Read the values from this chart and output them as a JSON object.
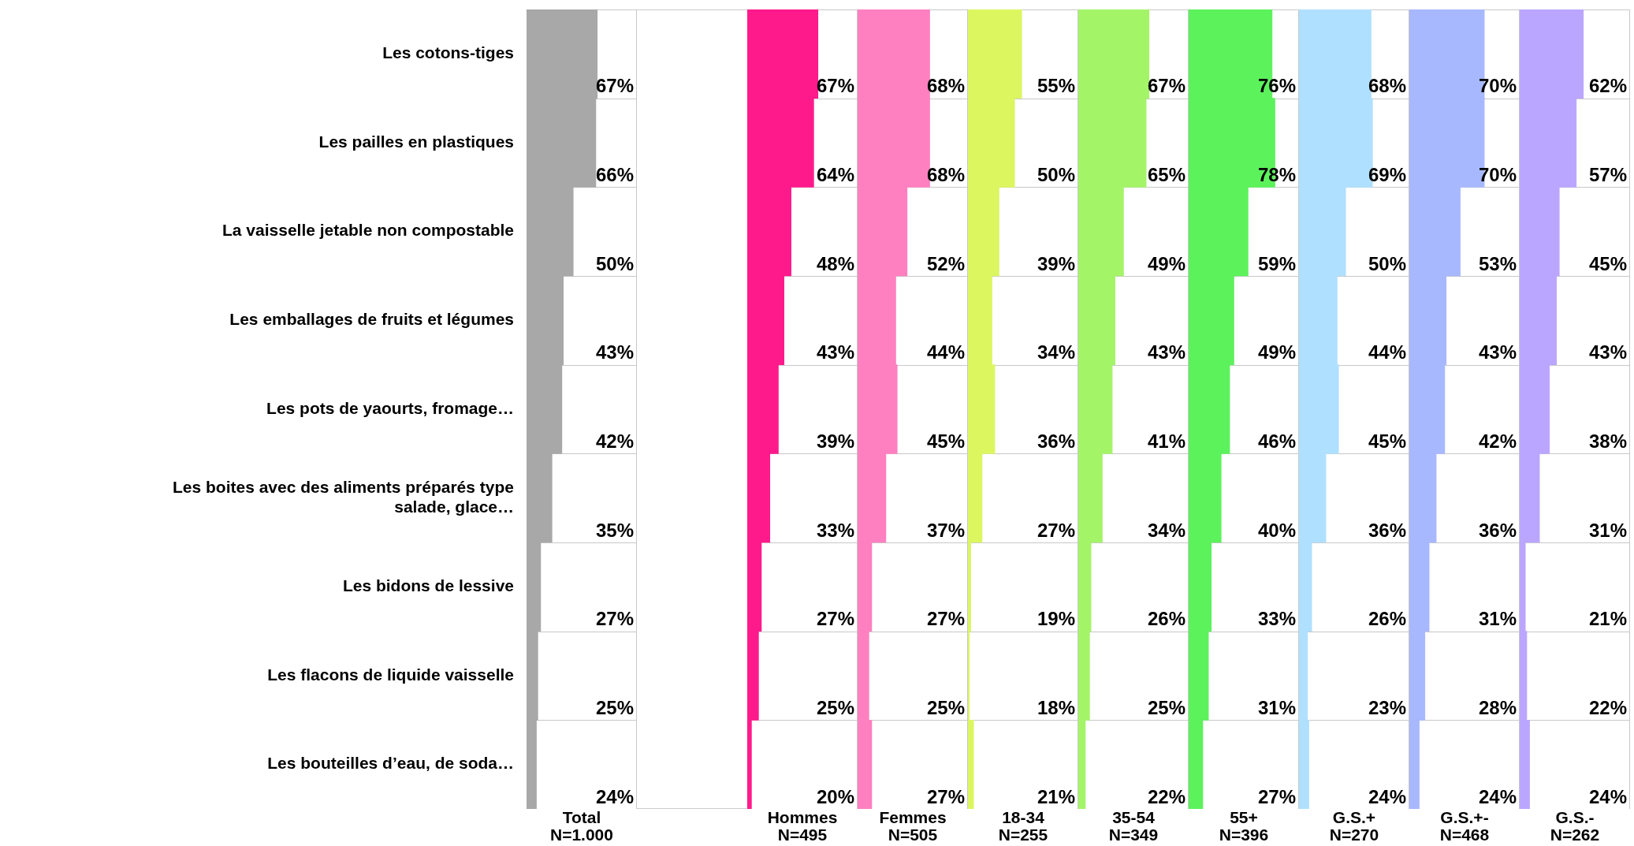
{
  "chart_data": [
    {
      "type": "bar",
      "orientation": "horizontal",
      "xlabel": "Total\nN=1.000",
      "tick_labels": "y",
      "grid": "y",
      "xlim": [
        17,
        95
      ],
      "color": "#a8a8a8",
      "categories": [
        "Les cotons-tiges",
        "Les pailles en plastiques",
        "La vaisselle jetable non compostable",
        "Les emballages de fruits et légumes",
        "Les pots de yaourts, fromage…",
        "Les boites avec des aliments préparés type salade, glace…",
        "Les bidons de lessive",
        "Les flacons de liquide vaisselle",
        "Les bouteilles d’eau, de soda…"
      ],
      "values": [
        67,
        66,
        50,
        43,
        42,
        35,
        27,
        25,
        24
      ],
      "value_labels": [
        "67%",
        "66%",
        "50%",
        "43%",
        "42%",
        "35%",
        "27%",
        "25%",
        "24%"
      ]
    },
    {
      "type": "bar",
      "orientation": "horizontal",
      "xlabel": "Hommes\nN=495",
      "tick_labels": false,
      "grid": "y",
      "xlim": [
        17,
        95
      ],
      "color": "#ff1a8c",
      "values": [
        67,
        64,
        48,
        43,
        39,
        33,
        27,
        25,
        20
      ],
      "value_labels": [
        "67%",
        "64%",
        "48%",
        "43%",
        "39%",
        "33%",
        "27%",
        "25%",
        "20%"
      ]
    },
    {
      "type": "bar",
      "orientation": "horizontal",
      "xlabel": "Femmes\nN=505",
      "tick_labels": false,
      "grid": "y",
      "xlim": [
        17,
        95
      ],
      "color": "#ff80c0",
      "values": [
        68,
        68,
        52,
        44,
        45,
        37,
        27,
        25,
        27
      ],
      "value_labels": [
        "68%",
        "68%",
        "52%",
        "44%",
        "45%",
        "37%",
        "27%",
        "25%",
        "27%"
      ]
    },
    {
      "type": "bar",
      "orientation": "horizontal",
      "xlabel": "18-34\nN=255",
      "tick_labels": false,
      "grid": "y",
      "xlim": [
        17,
        95
      ],
      "color": "#dcf660",
      "values": [
        55,
        50,
        39,
        34,
        36,
        27,
        19,
        18,
        21
      ],
      "value_labels": [
        "55%",
        "50%",
        "39%",
        "34%",
        "36%",
        "27%",
        "19%",
        "18%",
        "21%"
      ]
    },
    {
      "type": "bar",
      "orientation": "horizontal",
      "xlabel": "35-54\nN=349",
      "tick_labels": false,
      "grid": "y",
      "xlim": [
        17,
        95
      ],
      "color": "#a4f468",
      "values": [
        67,
        65,
        49,
        43,
        41,
        34,
        26,
        25,
        22
      ],
      "value_labels": [
        "67%",
        "65%",
        "49%",
        "43%",
        "41%",
        "34%",
        "26%",
        "25%",
        "22%"
      ]
    },
    {
      "type": "bar",
      "orientation": "horizontal",
      "xlabel": "55+\nN=396",
      "tick_labels": false,
      "grid": "y",
      "xlim": [
        17,
        95
      ],
      "color": "#5cf25c",
      "values": [
        76,
        78,
        59,
        49,
        46,
        40,
        33,
        31,
        27
      ],
      "value_labels": [
        "76%",
        "78%",
        "59%",
        "49%",
        "46%",
        "40%",
        "33%",
        "31%",
        "27%"
      ]
    },
    {
      "type": "bar",
      "orientation": "horizontal",
      "xlabel": "G.S.+\nN=270",
      "tick_labels": false,
      "grid": "y",
      "xlim": [
        17,
        95
      ],
      "color": "#b0e0ff",
      "values": [
        68,
        69,
        50,
        44,
        45,
        36,
        26,
        23,
        24
      ],
      "value_labels": [
        "68%",
        "69%",
        "50%",
        "44%",
        "45%",
        "36%",
        "26%",
        "23%",
        "24%"
      ]
    },
    {
      "type": "bar",
      "orientation": "horizontal",
      "xlabel": "G.S.+-\nN=468",
      "tick_labels": false,
      "grid": "y",
      "xlim": [
        17,
        95
      ],
      "color": "#a8b8ff",
      "values": [
        70,
        70,
        53,
        43,
        42,
        36,
        31,
        28,
        24
      ],
      "value_labels": [
        "70%",
        "70%",
        "53%",
        "43%",
        "42%",
        "36%",
        "31%",
        "28%",
        "24%"
      ]
    },
    {
      "type": "bar",
      "orientation": "horizontal",
      "xlabel": "G.S.-\nN=262",
      "tick_labels": false,
      "grid": "y",
      "xlim": [
        17,
        95
      ],
      "color": "#bba6ff",
      "values": [
        62,
        57,
        45,
        43,
        38,
        31,
        21,
        22,
        24
      ],
      "value_labels": [
        "62%",
        "57%",
        "45%",
        "43%",
        "38%",
        "31%",
        "21%",
        "22%",
        "24%"
      ]
    }
  ]
}
